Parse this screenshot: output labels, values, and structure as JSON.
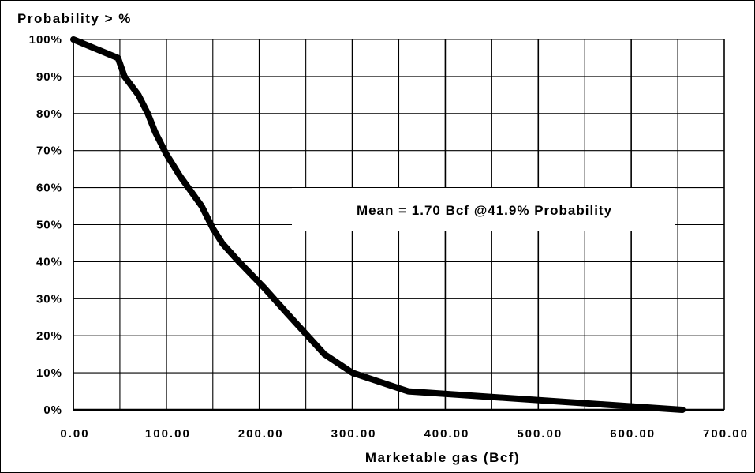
{
  "chart_data": {
    "type": "line",
    "title": "Probability > %",
    "xlabel": "Marketable gas (Bcf)",
    "ylabel": "",
    "xlim": [
      0,
      700
    ],
    "ylim": [
      0,
      100
    ],
    "x_ticks": [
      "0.00",
      "100.00",
      "200.00",
      "300.00",
      "400.00",
      "500.00",
      "600.00",
      "700.00"
    ],
    "y_ticks": [
      "0%",
      "10%",
      "20%",
      "30%",
      "40%",
      "50%",
      "60%",
      "70%",
      "80%",
      "90%",
      "100%"
    ],
    "grid": true,
    "series": [
      {
        "color": "#000000",
        "points": [
          [
            0,
            100
          ],
          [
            48,
            95
          ],
          [
            55,
            90
          ],
          [
            70,
            85
          ],
          [
            80,
            80
          ],
          [
            88,
            75
          ],
          [
            100,
            69
          ],
          [
            115,
            63
          ],
          [
            138,
            55
          ],
          [
            150,
            49
          ],
          [
            160,
            45
          ],
          [
            178,
            40
          ],
          [
            205,
            33
          ],
          [
            230,
            26
          ],
          [
            270,
            15
          ],
          [
            300,
            10
          ],
          [
            360,
            5
          ],
          [
            655,
            0
          ]
        ]
      }
    ],
    "annotation": "Mean = 1.70 Bcf @41.9% Probability"
  }
}
